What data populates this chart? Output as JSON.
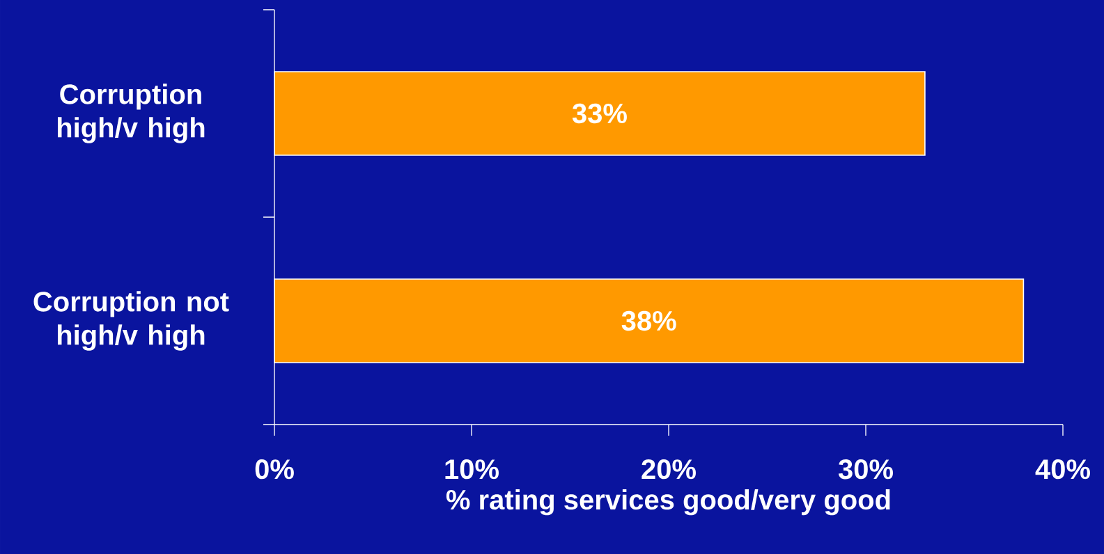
{
  "chart_data": {
    "type": "bar",
    "orientation": "horizontal",
    "categories": [
      "Corruption high/v high",
      "Corruption not high/v high"
    ],
    "values": [
      33,
      38
    ],
    "color": "#ff9900",
    "value_labels": [
      "33%",
      "38%"
    ],
    "xlabel": "% rating services good/very good",
    "xlim": [
      0,
      40
    ],
    "xticks": [
      {
        "value": 0,
        "label": "0%"
      },
      {
        "value": 10,
        "label": "10%"
      },
      {
        "value": 20,
        "label": "20%"
      },
      {
        "value": 30,
        "label": "30%"
      },
      {
        "value": 40,
        "label": "40%"
      }
    ]
  }
}
